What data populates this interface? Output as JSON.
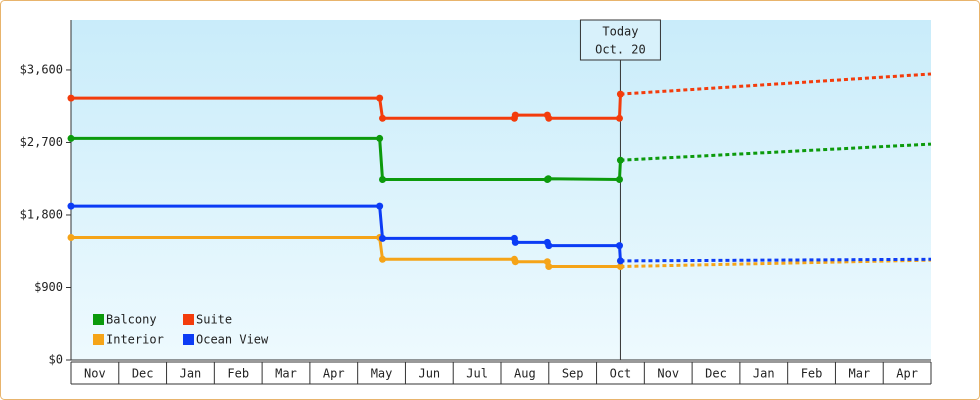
{
  "chart_data": {
    "type": "line",
    "step_dots": true,
    "xlim": [
      0,
      18
    ],
    "xticks": [
      {
        "value": 0,
        "label": "Nov"
      },
      {
        "value": 1,
        "label": "Dec"
      },
      {
        "value": 2,
        "label": "Jan"
      },
      {
        "value": 3,
        "label": "Feb"
      },
      {
        "value": 4,
        "label": "Mar"
      },
      {
        "value": 5,
        "label": "Apr"
      },
      {
        "value": 6,
        "label": "May"
      },
      {
        "value": 7,
        "label": "Jun"
      },
      {
        "value": 8,
        "label": "Jul"
      },
      {
        "value": 9,
        "label": "Aug"
      },
      {
        "value": 10,
        "label": "Sep"
      },
      {
        "value": 11,
        "label": "Oct"
      },
      {
        "value": 12,
        "label": "Nov"
      },
      {
        "value": 13,
        "label": "Dec"
      },
      {
        "value": 14,
        "label": "Jan"
      },
      {
        "value": 15,
        "label": "Feb"
      },
      {
        "value": 16,
        "label": "Mar"
      },
      {
        "value": 17,
        "label": "Apr"
      }
    ],
    "ylim": [
      0,
      4220
    ],
    "yticks": [
      {
        "value": 0,
        "label": "$0"
      },
      {
        "value": 900,
        "label": "$900"
      },
      {
        "value": 1800,
        "label": "$1,800"
      },
      {
        "value": 2700,
        "label": "$2,700"
      },
      {
        "value": 3600,
        "label": "$3,600"
      }
    ],
    "legend": "lower left",
    "annotation": {
      "x": 11.5,
      "lines": [
        "Today",
        "Oct. 20"
      ]
    },
    "series": [
      {
        "name": "Balcony",
        "color": "#0c9a0c",
        "x": [
          0,
          6.46,
          6.52,
          9.97,
          9.99,
          11.48,
          11.5
        ],
        "values": [
          2750,
          2750,
          2240,
          2240,
          2250,
          2240,
          2480
        ],
        "forecast": {
          "x": [
            11.5,
            18
          ],
          "values": [
            2480,
            2680
          ]
        }
      },
      {
        "name": "Suite",
        "color": "#f33c0c",
        "x": [
          0,
          6.46,
          6.52,
          9.28,
          9.3,
          9.97,
          10.0,
          11.48,
          11.5
        ],
        "values": [
          3250,
          3250,
          3000,
          3000,
          3040,
          3040,
          3000,
          3000,
          3300
        ],
        "forecast": {
          "x": [
            11.5,
            18
          ],
          "values": [
            3300,
            3550
          ]
        }
      },
      {
        "name": "Interior",
        "color": "#f5a418",
        "x": [
          0,
          6.46,
          6.52,
          9.28,
          9.3,
          9.97,
          10.0,
          11.5
        ],
        "values": [
          1520,
          1520,
          1250,
          1250,
          1220,
          1220,
          1160,
          1160
        ],
        "forecast": {
          "x": [
            11.5,
            18
          ],
          "values": [
            1160,
            1240
          ]
        }
      },
      {
        "name": "Ocean View",
        "color": "#0c3cf5",
        "x": [
          0,
          6.46,
          6.52,
          9.28,
          9.3,
          9.97,
          10.0,
          11.48,
          11.5
        ],
        "values": [
          1910,
          1910,
          1510,
          1510,
          1460,
          1460,
          1420,
          1420,
          1230
        ],
        "forecast": {
          "x": [
            11.5,
            18
          ],
          "values": [
            1230,
            1250
          ]
        }
      }
    ]
  }
}
